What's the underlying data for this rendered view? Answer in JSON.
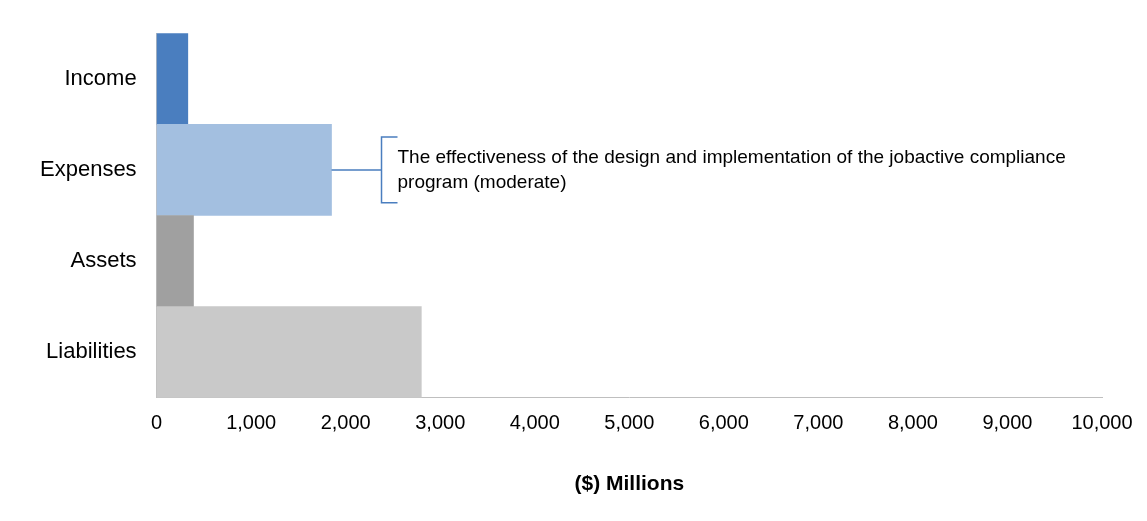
{
  "chart_data": {
    "type": "bar",
    "orientation": "horizontal",
    "categories": [
      "Income",
      "Expenses",
      "Assets",
      "Liabilities"
    ],
    "values": [
      330,
      1850,
      390,
      2800
    ],
    "colors": [
      "#4a7ebf",
      "#a3bfe0",
      "#a0a0a0",
      "#c9c9c9"
    ],
    "x_label": "($) Millions",
    "xlim": [
      0,
      10000
    ],
    "xticks": [
      0,
      {
        "value": 1000,
        "label": "1,000"
      },
      {
        "value": 2000,
        "label": "2,000"
      },
      {
        "value": 3000,
        "label": "3,000"
      },
      {
        "value": 4000,
        "label": "4,000"
      },
      {
        "value": 5000,
        "label": "5,000"
      },
      {
        "value": 6000,
        "label": "6,000"
      },
      {
        "value": 7000,
        "label": "7,000"
      },
      {
        "value": 8000,
        "label": "8,000"
      },
      {
        "value": 9000,
        "label": "9,000"
      },
      {
        "value": 10000,
        "label": "10,000"
      }
    ],
    "grid": false,
    "annotations": [
      {
        "category": "Expenses",
        "text": "The effectiveness of the design and implementation of the jobactive compliance program (moderate)"
      }
    ]
  }
}
